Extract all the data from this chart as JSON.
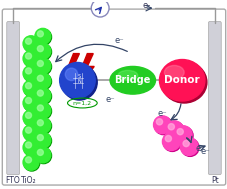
{
  "fig_width": 2.28,
  "fig_height": 1.89,
  "dpi": 100,
  "bg_color": "#ffffff",
  "fto_color": "#d0d0d8",
  "pt_color": "#d0d0d8",
  "tio2_green": "#33ee33",
  "tio2_green_light": "#99ff99",
  "tio2_green_dark": "#009900",
  "bridge_green": "#22cc22",
  "donor_red": "#ff1155",
  "donor_red_light": "#ff88aa",
  "acceptor_blue": "#2244cc",
  "acceptor_blue_light": "#6688ff",
  "magenta_dark": "#cc0088",
  "magenta_main": "#ff44bb",
  "magenta_light": "#ffaadd",
  "lightning_red": "#cc0000",
  "arrow_color": "#334466",
  "text_color": "#333355",
  "meter_border": "#8888bb",
  "wire_color": "#999999",
  "fto_label": "FTO",
  "tio2_label": "TiO₂",
  "pt_label": "Pt",
  "bridge_label": "Bridge",
  "donor_label": "Donor",
  "n_label": "n=1,2",
  "eminus_top": "e-"
}
